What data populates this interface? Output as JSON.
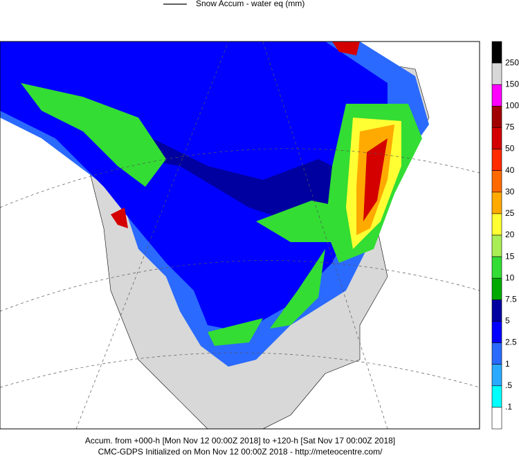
{
  "header": {
    "legend_label": "Snow Accum - water eq (mm)"
  },
  "colorbar": {
    "colors": [
      "#000000",
      "#d8d8d8",
      "#ff00ff",
      "#a00000",
      "#d40000",
      "#ff2a00",
      "#ff6a00",
      "#ffaa00",
      "#ffff33",
      "#aaee55",
      "#33dd33",
      "#00aa00",
      "#0000a0",
      "#0000ff",
      "#2a6aff",
      "#2aaaff",
      "#00ffff",
      "#ffffff"
    ],
    "levels": [
      "250",
      "150",
      "100",
      "75",
      "50",
      "40",
      "30",
      "25",
      "20",
      "15",
      "10",
      "7.5",
      "5",
      "2.5",
      "1",
      ".5",
      ".1"
    ]
  },
  "footer": {
    "line1": "Accum. from +000-h [Mon Nov 12 00:00Z 2018] to +120-h [Sat Nov 17 00:00Z 2018]",
    "line2": "CMC-GDPS Initialized on Mon Nov 12 00:00Z 2018 - http://meteocentre.com/"
  }
}
